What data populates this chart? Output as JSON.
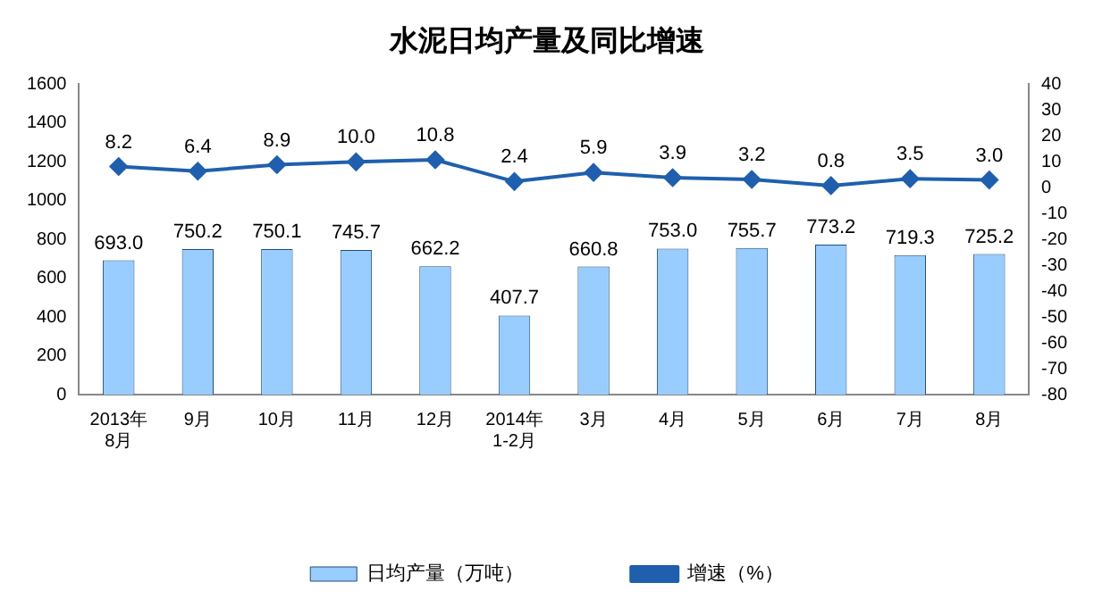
{
  "chart_data": {
    "type": "bar",
    "title": "水泥日均产量及同比增速",
    "categories": [
      "2013年\n8月",
      "9月",
      "10月",
      "11月",
      "12月",
      "2014年\n1-2月",
      "3月",
      "4月",
      "5月",
      "6月",
      "7月",
      "8月"
    ],
    "series": [
      {
        "name": "日均产量（万吨）",
        "color": "#99ccff",
        "values": [
          693.0,
          750.2,
          750.1,
          745.7,
          662.2,
          407.7,
          660.8,
          753.0,
          755.7,
          773.2,
          719.3,
          725.2
        ],
        "value_labels": [
          "693.0",
          "750.2",
          "750.1",
          "745.7",
          "662.2",
          "407.7",
          "660.8",
          "753.0",
          "755.7",
          "773.2",
          "719.3",
          "725.2"
        ]
      },
      {
        "name": "增速（%）",
        "type": "line",
        "axis": "y2",
        "color": "#1f5fae",
        "values": [
          8.2,
          6.4,
          8.9,
          10.0,
          10.8,
          2.4,
          5.9,
          3.9,
          3.2,
          0.8,
          3.5,
          3.0
        ],
        "value_labels": [
          "8.2",
          "6.4",
          "8.9",
          "10.0",
          "10.8",
          "2.4",
          "5.9",
          "3.9",
          "3.2",
          "0.8",
          "3.5",
          "3.0"
        ]
      }
    ],
    "ylim": [
      0,
      1600
    ],
    "yticks": [
      0,
      200,
      400,
      600,
      800,
      1000,
      1200,
      1400,
      1600
    ],
    "y2lim": [
      -80,
      40
    ],
    "y2ticks": [
      -80,
      -70,
      -60,
      -50,
      -40,
      -30,
      -20,
      -10,
      0,
      10,
      20,
      30,
      40
    ],
    "legend": "bottom",
    "marker": "diamond",
    "line_style": "solid"
  }
}
